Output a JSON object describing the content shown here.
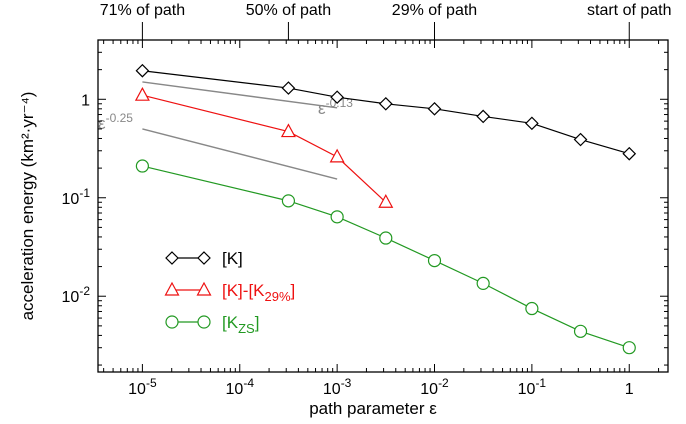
{
  "chart_data": {
    "type": "line",
    "xscale": "log",
    "yscale": "log",
    "xlabel": "path parameter ε",
    "ylabel": "acceleration energy (km²·yr⁻⁴)",
    "xlim": [
      3.5e-06,
      2.5
    ],
    "ylim": [
      0.0017,
      4
    ],
    "x_ticks": [
      {
        "value": 1e-05,
        "base": "10",
        "exp": "-5"
      },
      {
        "value": 0.0001,
        "base": "10",
        "exp": "-4"
      },
      {
        "value": 0.001,
        "base": "10",
        "exp": "-3"
      },
      {
        "value": 0.01,
        "base": "10",
        "exp": "-2"
      },
      {
        "value": 0.1,
        "base": "10",
        "exp": "-1"
      },
      {
        "value": 1,
        "base": "1",
        "exp": ""
      }
    ],
    "y_ticks": [
      {
        "value": 1,
        "base": "1",
        "exp": ""
      },
      {
        "value": 0.1,
        "base": "10",
        "exp": "-1"
      },
      {
        "value": 0.01,
        "base": "10",
        "exp": "-2"
      }
    ],
    "top_axis": [
      {
        "x": 1e-05,
        "label": "71% of path"
      },
      {
        "x": 0.000316,
        "label": "50% of path"
      },
      {
        "x": 0.01,
        "label": "29% of path"
      },
      {
        "x": 1,
        "label": "start of path"
      }
    ],
    "series": [
      {
        "name": "[K]",
        "marker": "diamond",
        "color": "#000000",
        "x": [
          1e-05,
          0.000316,
          0.001,
          0.00316,
          0.01,
          0.0316,
          0.1,
          0.316,
          1
        ],
        "y": [
          1.95,
          1.3,
          1.05,
          0.9,
          0.8,
          0.67,
          0.57,
          0.39,
          0.28
        ]
      },
      {
        "name": "[K]-[K29%]",
        "marker": "triangle",
        "color": "#ee1111",
        "x": [
          1e-05,
          0.000316,
          0.001,
          0.00316
        ],
        "y": [
          1.1,
          0.47,
          0.26,
          0.09
        ]
      },
      {
        "name": "[KZS]",
        "marker": "circle",
        "color": "#229922",
        "x": [
          1e-05,
          0.000316,
          0.001,
          0.00316,
          0.01,
          0.0316,
          0.1,
          0.316,
          1
        ],
        "y": [
          0.21,
          0.093,
          0.064,
          0.039,
          0.023,
          0.0135,
          0.0075,
          0.0044,
          0.003
        ]
      }
    ],
    "reference_lines": [
      {
        "label": "ε",
        "exp": "-0.13",
        "x": [
          1e-05,
          0.001
        ],
        "y": [
          1.5,
          0.82
        ]
      },
      {
        "label": "ε",
        "exp": "-0.25",
        "x": [
          1e-05,
          0.001
        ],
        "y": [
          0.5,
          0.155
        ]
      }
    ],
    "legend": {
      "position": "bottom-left",
      "items": [
        {
          "base": "[K]",
          "sub": "",
          "tail": "",
          "color": "#000000"
        },
        {
          "base": "[K]-[K",
          "sub": "29%",
          "tail": "]",
          "color": "#ee1111"
        },
        {
          "base": "[K",
          "sub": "ZS",
          "tail": "]",
          "color": "#229922"
        }
      ]
    },
    "grid": false
  }
}
